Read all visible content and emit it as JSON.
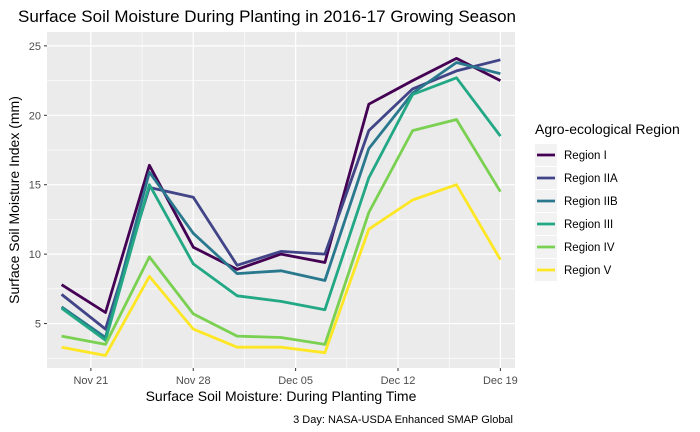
{
  "chart_data": {
    "type": "line",
    "title": "Surface Soil Moisture During Planting in 2016-17 Growing Season",
    "xlabel": "Surface Soil Moisture: During Planting Time",
    "ylabel": "Surface Soil Moisture Index (mm)",
    "caption": "3 Day: NASA-USDA Enhanced SMAP Global",
    "legend_title": "Agro-ecological Region",
    "legend_position": "right",
    "grid": true,
    "x": [
      "2016-11-19",
      "2016-11-22",
      "2016-11-25",
      "2016-11-28",
      "2016-12-01",
      "2016-12-04",
      "2016-12-07",
      "2016-12-10",
      "2016-12-13",
      "2016-12-16",
      "2016-12-19"
    ],
    "xticks": [
      {
        "date": "2016-11-21",
        "label": "Nov 21"
      },
      {
        "date": "2016-11-28",
        "label": "Nov 28"
      },
      {
        "date": "2016-12-05",
        "label": "Dec 05"
      },
      {
        "date": "2016-12-12",
        "label": "Dec 12"
      },
      {
        "date": "2016-12-19",
        "label": "Dec 19"
      }
    ],
    "xlim": [
      "2016-11-18",
      "2016-12-20"
    ],
    "ylim": [
      1.8,
      26
    ],
    "yticks": [
      5,
      10,
      15,
      20,
      25
    ],
    "series": [
      {
        "name": "Region I",
        "color": "#440154",
        "values": [
          7.8,
          5.8,
          16.4,
          10.5,
          8.9,
          10.0,
          9.4,
          20.8,
          22.5,
          24.1,
          22.5
        ]
      },
      {
        "name": "Region IIA",
        "color": "#414487",
        "values": [
          7.1,
          4.6,
          14.8,
          14.1,
          9.2,
          10.2,
          10.0,
          18.9,
          21.9,
          23.2,
          24.0
        ]
      },
      {
        "name": "Region IIB",
        "color": "#2a788e",
        "values": [
          6.2,
          4.0,
          15.9,
          11.5,
          8.6,
          8.8,
          8.1,
          17.6,
          21.6,
          23.8,
          23.0
        ]
      },
      {
        "name": "Region III",
        "color": "#22a884",
        "values": [
          6.1,
          3.8,
          15.0,
          9.3,
          7.0,
          6.6,
          6.0,
          15.5,
          21.5,
          22.7,
          18.5
        ]
      },
      {
        "name": "Region IV",
        "color": "#7ad151",
        "values": [
          4.1,
          3.5,
          9.8,
          5.7,
          4.1,
          4.0,
          3.5,
          13.0,
          18.9,
          19.7,
          14.5
        ]
      },
      {
        "name": "Region V",
        "color": "#fde725",
        "values": [
          3.3,
          2.7,
          8.4,
          4.6,
          3.3,
          3.3,
          2.9,
          11.8,
          13.9,
          15.0,
          9.6
        ]
      }
    ]
  }
}
